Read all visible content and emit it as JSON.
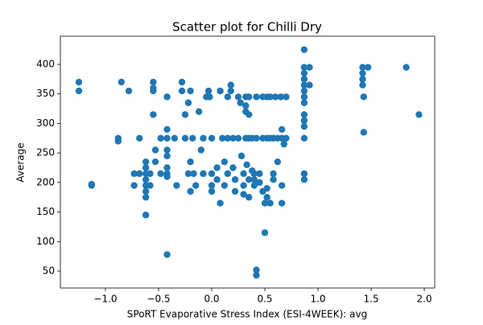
{
  "chart_data": {
    "type": "scatter",
    "title": "Scatter plot for Chilli Dry",
    "x_label": "SPoRT Evaporative Stress Index (ESI-4WEEK): avg",
    "y_label": "Average",
    "xlim": [
      -1.424,
      2.098
    ],
    "ylim": [
      21.4,
      447.7
    ],
    "xticks": [
      {
        "value": -1,
        "label": "−1.0"
      },
      {
        "value": -0.5,
        "label": "−0.5"
      },
      {
        "value": 0,
        "label": "0.0"
      },
      {
        "value": 0.5,
        "label": "0.5"
      },
      {
        "value": 1,
        "label": "1.0"
      },
      {
        "value": 1.5,
        "label": "1.5"
      },
      {
        "value": 2,
        "label": "2.0"
      }
    ],
    "yticks": [
      50,
      100,
      150,
      200,
      250,
      300,
      350,
      400
    ],
    "color": "#1f77b4",
    "x": [
      -1.25,
      -1.25,
      -1.13,
      -1.13,
      -0.88,
      -0.88,
      -0.85,
      -0.78,
      -0.73,
      -0.73,
      -0.68,
      -0.68,
      -0.62,
      -0.62,
      -0.62,
      -0.62,
      -0.62,
      -0.62,
      -0.62,
      -0.62,
      -0.58,
      -0.58,
      -0.55,
      -0.55,
      -0.55,
      -0.55,
      -0.53,
      -0.53,
      -0.48,
      -0.48,
      -0.42,
      -0.42,
      -0.42,
      -0.42,
      -0.42,
      -0.42,
      -0.42,
      -0.42,
      -0.42,
      -0.35,
      -0.33,
      -0.28,
      -0.28,
      -0.25,
      -0.25,
      -0.22,
      -0.22,
      -0.2,
      -0.2,
      -0.2,
      -0.18,
      -0.17,
      -0.15,
      -0.12,
      -0.1,
      -0.08,
      -0.08,
      -0.05,
      -0.03,
      -0.02,
      0,
      0,
      0,
      0,
      0.05,
      0.05,
      0.08,
      0.08,
      0.1,
      0.12,
      0.12,
      0.15,
      0.15,
      0.15,
      0.18,
      0.18,
      0.2,
      0.2,
      0.22,
      0.22,
      0.25,
      0.25,
      0.27,
      0.28,
      0.3,
      0.3,
      0.3,
      0.32,
      0.32,
      0.32,
      0.32,
      0.33,
      0.35,
      0.35,
      0.35,
      0.35,
      0.35,
      0.38,
      0.38,
      0.4,
      0.4,
      0.4,
      0.42,
      0.42,
      0.42,
      0.42,
      0.45,
      0.45,
      0.48,
      0.48,
      0.48,
      0.5,
      0.5,
      0.52,
      0.52,
      0.52,
      0.52,
      0.55,
      0.55,
      0.55,
      0.58,
      0.58,
      0.58,
      0.6,
      0.62,
      0.62,
      0.65,
      0.66,
      0.66,
      0.66,
      0.66,
      0.68,
      0.7,
      0.7,
      0.87,
      0.87,
      0.87,
      0.87,
      0.87,
      0.87,
      0.87,
      0.87,
      0.87,
      0.87,
      0.87,
      0.87,
      0.87,
      0.87,
      0.92,
      0.92,
      1.42,
      1.42,
      1.42,
      1.42,
      1.43,
      1.43,
      1.47,
      1.83,
      1.95
    ],
    "values": [
      370,
      355,
      195,
      197,
      275,
      270,
      370,
      355,
      215,
      195,
      215,
      275,
      235,
      225,
      215,
      205,
      195,
      185,
      175,
      145,
      215,
      195,
      370,
      360,
      355,
      315,
      255,
      235,
      275,
      215,
      345,
      290,
      275,
      255,
      245,
      225,
      215,
      210,
      78,
      275,
      195,
      370,
      355,
      315,
      275,
      335,
      215,
      355,
      185,
      235,
      275,
      215,
      195,
      320,
      255,
      275,
      215,
      345,
      355,
      345,
      275,
      215,
      195,
      185,
      225,
      205,
      355,
      165,
      275,
      235,
      195,
      345,
      275,
      215,
      365,
      355,
      275,
      225,
      205,
      185,
      275,
      345,
      335,
      245,
      215,
      195,
      180,
      345,
      330,
      320,
      275,
      230,
      345,
      315,
      275,
      205,
      175,
      275,
      220,
      215,
      205,
      195,
      345,
      275,
      52,
      43,
      215,
      200,
      345,
      275,
      185,
      165,
      115,
      345,
      275,
      190,
      175,
      345,
      275,
      165,
      275,
      215,
      205,
      345,
      275,
      235,
      345,
      275,
      195,
      165,
      290,
      265,
      275,
      345,
      425,
      395,
      385,
      375,
      365,
      355,
      345,
      335,
      315,
      305,
      295,
      275,
      215,
      205,
      395,
      365,
      395,
      385,
      375,
      365,
      345,
      285,
      395,
      395,
      315
    ]
  }
}
